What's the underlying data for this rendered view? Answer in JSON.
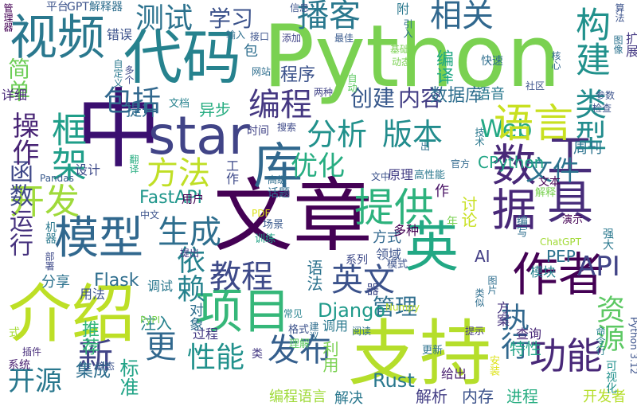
{
  "words": [
    {
      "text": "Python",
      "color": "#7ad151"
    },
    {
      "text": "中",
      "color": "#3b0f70"
    },
    {
      "text": "star",
      "color": "#414487"
    },
    {
      "text": "文章",
      "color": "#440154"
    },
    {
      "text": "介绍",
      "color": "#bddf26"
    },
    {
      "text": "支持",
      "color": "#b5de2b"
    },
    {
      "text": "代码",
      "color": "#26828e"
    },
    {
      "text": "项目",
      "color": "#35b779"
    },
    {
      "text": "作者",
      "color": "#440154"
    },
    {
      "text": "英",
      "color": "#22a884"
    },
    {
      "text": "视频",
      "color": "#2a788e"
    },
    {
      "text": "工具",
      "color": "#472c7a"
    },
    {
      "text": "库",
      "color": "#31688e"
    },
    {
      "text": "数据",
      "color": "#482878"
    },
    {
      "text": "模型",
      "color": "#31688e"
    },
    {
      "text": "框架",
      "color": "#1f9e89"
    },
    {
      "text": "测试",
      "color": "#2c728e"
    },
    {
      "text": "学习",
      "color": "#3b528b"
    },
    {
      "text": "播客",
      "color": "#2a788e"
    },
    {
      "text": "相关",
      "color": "#31688e"
    },
    {
      "text": "构建",
      "color": "#21918c"
    },
    {
      "text": "类型",
      "color": "#228c8d"
    },
    {
      "text": "Web",
      "color": "#22a884"
    },
    {
      "text": "编译",
      "color": "#22a884"
    },
    {
      "text": "语言",
      "color": "#c8e020"
    },
    {
      "text": "分析",
      "color": "#21918c"
    },
    {
      "text": "版本",
      "color": "#228c8d"
    },
    {
      "text": "创建",
      "color": "#38598c"
    },
    {
      "text": "内容",
      "color": "#433e85"
    },
    {
      "text": "编程",
      "color": "#453882"
    },
    {
      "text": "包括",
      "color": "#31688e"
    },
    {
      "text": "简单",
      "color": "#6ece58"
    },
    {
      "text": "开发",
      "color": "#9fda3a"
    },
    {
      "text": "方法",
      "color": "#c0df25"
    },
    {
      "text": "生成",
      "color": "#2e6e8e"
    },
    {
      "text": "优化",
      "color": "#27ad81"
    },
    {
      "text": "提供",
      "color": "#2db27d"
    },
    {
      "text": "文件",
      "color": "#2c738e"
    },
    {
      "text": "CPython",
      "color": "#21a585"
    },
    {
      "text": "运行",
      "color": "#46327e"
    },
    {
      "text": "函数",
      "color": "#3f4889"
    },
    {
      "text": "操作",
      "color": "#482475"
    },
    {
      "text": "教程",
      "color": "#3e4a89"
    },
    {
      "text": "依赖",
      "color": "#26828e"
    },
    {
      "text": "英文",
      "color": "#3b528b"
    },
    {
      "text": "API",
      "color": "#414487"
    },
    {
      "text": "资源",
      "color": "#5cc863"
    },
    {
      "text": "执行",
      "color": "#31688e"
    },
    {
      "text": "功能",
      "color": "#482878"
    },
    {
      "text": "管理",
      "color": "#2e6e8e"
    },
    {
      "text": "Django",
      "color": "#1f9a8a"
    },
    {
      "text": "Flask",
      "color": "#2e6e8e"
    },
    {
      "text": "FastAPI",
      "color": "#1f968b"
    },
    {
      "text": "开源",
      "color": "#2a788e"
    },
    {
      "text": "新",
      "color": "#414487"
    },
    {
      "text": "更",
      "color": "#31688e"
    },
    {
      "text": "发布",
      "color": "#355f8d"
    },
    {
      "text": "性能",
      "color": "#21918c"
    },
    {
      "text": "标准",
      "color": "#20a386"
    },
    {
      "text": "Rust",
      "color": "#2a788e"
    },
    {
      "text": "解析",
      "color": "#433e85"
    },
    {
      "text": "内存",
      "color": "#3b528b"
    },
    {
      "text": "进程",
      "color": "#27ad81"
    },
    {
      "text": "开发者",
      "color": "#b5de2b"
    },
    {
      "text": "编程语言",
      "color": "#9fda3a"
    },
    {
      "text": "解决",
      "color": "#2a788e"
    },
    {
      "text": "推荐",
      "color": "#32b67a"
    },
    {
      "text": "集成",
      "color": "#2e6e8e"
    },
    {
      "text": "注入",
      "color": "#26828e"
    },
    {
      "text": "过程",
      "color": "#443983"
    },
    {
      "text": "系统",
      "color": "#481f70"
    },
    {
      "text": "插件",
      "color": "#472d7b"
    },
    {
      "text": "式",
      "color": "#a5db36"
    },
    {
      "text": "分享",
      "color": "#2c728e"
    },
    {
      "text": "用法",
      "color": "#3b528b"
    },
    {
      "text": "调试",
      "color": "#2a788e"
    },
    {
      "text": "方式",
      "color": "#31688e"
    },
    {
      "text": "多种",
      "color": "#440154"
    },
    {
      "text": "年",
      "color": "#7ad151"
    },
    {
      "text": "PEP",
      "color": "#2c728e"
    },
    {
      "text": "模块",
      "color": "#26828e"
    },
    {
      "text": "AI",
      "color": "#433e85"
    },
    {
      "text": "领域",
      "color": "#3b528b"
    },
    {
      "text": "模式",
      "color": "#3b528b"
    },
    {
      "text": "系列",
      "color": "#3e4a89"
    },
    {
      "text": "语法",
      "color": "#2c728e"
    },
    {
      "text": "特性",
      "color": "#20a386"
    },
    {
      "text": "查询",
      "color": "#482878"
    },
    {
      "text": "方案",
      "color": "#46327e"
    },
    {
      "text": "调用",
      "color": "#2a788e"
    },
    {
      "text": "格式",
      "color": "#3b528b"
    },
    {
      "text": "理解",
      "color": "#5ec962"
    },
    {
      "text": "利用",
      "color": "#7ad151"
    },
    {
      "text": "给出",
      "color": "#481f70"
    },
    {
      "text": "类",
      "color": "#443983"
    },
    {
      "text": "更新",
      "color": "#2c728e"
    },
    {
      "text": "安装",
      "color": "#dde318"
    },
    {
      "text": "可视化",
      "color": "#21918c"
    },
    {
      "text": "Python 3.12",
      "color": "#3b528b"
    },
    {
      "text": "演示",
      "color": "#440154"
    },
    {
      "text": "强大",
      "color": "#2a788e"
    },
    {
      "text": "编写",
      "color": "#2e6e8e"
    },
    {
      "text": "ChatGPT",
      "color": "#a2da37"
    },
    {
      "text": "解释",
      "color": "#7ad151"
    },
    {
      "text": "周刊",
      "color": "#2c738e"
    },
    {
      "text": "文本",
      "color": "#440154"
    },
    {
      "text": "讨论",
      "color": "#c8e020"
    },
    {
      "text": "作",
      "color": "#471063"
    },
    {
      "text": "文中",
      "color": "#3b528b"
    },
    {
      "text": "原理",
      "color": "#433e85"
    },
    {
      "text": "高性能",
      "color": "#2a788e"
    },
    {
      "text": "官方",
      "color": "#31688e"
    },
    {
      "text": "技术",
      "color": "#2a788e"
    },
    {
      "text": "时间",
      "color": "#414487"
    },
    {
      "text": "搜索",
      "color": "#3e4a89"
    },
    {
      "text": "高级",
      "color": "#2e6e8e"
    },
    {
      "text": "话题",
      "color": "#2e6e8e"
    },
    {
      "text": "PDF",
      "color": "#dde318"
    },
    {
      "text": "场景",
      "color": "#38598c"
    },
    {
      "text": "训练",
      "color": "#20a386"
    },
    {
      "text": "用户",
      "color": "#440154"
    },
    {
      "text": "设计",
      "color": "#3e4a89"
    },
    {
      "text": "Pandas",
      "color": "#38598c"
    },
    {
      "text": "机器",
      "color": "#2a788e"
    },
    {
      "text": "部署",
      "color": "#3e4a89"
    },
    {
      "text": "提出",
      "color": "#443983"
    },
    {
      "text": "中文",
      "color": "#3b528b"
    },
    {
      "text": "翻译",
      "color": "#27ad81"
    },
    {
      "text": "文档",
      "color": "#26828e"
    },
    {
      "text": "异步",
      "color": "#27ad81"
    },
    {
      "text": "提升",
      "color": "#2e6e8e"
    },
    {
      "text": "程序",
      "color": "#3b528b"
    },
    {
      "text": "语音",
      "color": "#2a788e"
    },
    {
      "text": "数据库",
      "color": "#2e6e8e"
    },
    {
      "text": "详细",
      "color": "#482878"
    },
    {
      "text": "多个",
      "color": "#3e4a89"
    },
    {
      "text": "自定义",
      "color": "#2a788e"
    },
    {
      "text": "错误",
      "color": "#3b528b"
    },
    {
      "text": "网站",
      "color": "#2e6e8e"
    },
    {
      "text": "两种",
      "color": "#414487"
    },
    {
      "text": "自动",
      "color": "#5ec962"
    },
    {
      "text": "图像",
      "color": "#2c728e"
    },
    {
      "text": "GPT",
      "color": "#3b528b"
    },
    {
      "text": "解释器",
      "color": "#2e6e8e"
    },
    {
      "text": "平台",
      "color": "#3b528b"
    },
    {
      "text": "信息",
      "color": "#3b528b"
    },
    {
      "text": "附",
      "color": "#2a788e"
    },
    {
      "text": "算法",
      "color": "#3b528b"
    },
    {
      "text": "输入",
      "color": "#2e6e8e"
    },
    {
      "text": "接口",
      "color": "#3b528b"
    },
    {
      "text": "添加",
      "color": "#414487"
    },
    {
      "text": "最佳",
      "color": "#38598c"
    },
    {
      "text": "引入",
      "color": "#2e6e8e"
    },
    {
      "text": "扩展",
      "color": "#443983"
    },
    {
      "text": "包",
      "color": "#2e6e8e"
    },
    {
      "text": "管理器",
      "color": "#440154"
    },
    {
      "text": "基础",
      "color": "#7ad151"
    },
    {
      "text": "动态",
      "color": "#7ad151"
    },
    {
      "text": "快速",
      "color": "#2e6e8e"
    },
    {
      "text": "核心",
      "color": "#31688e"
    },
    {
      "text": "社区",
      "color": "#3b528b"
    },
    {
      "text": "参数",
      "color": "#3b528b"
    },
    {
      "text": "检查",
      "color": "#3b528b"
    },
    {
      "text": "对象",
      "color": "#2e6e8e"
    },
    {
      "text": "命令行",
      "color": "#26828e"
    },
    {
      "text": "提示",
      "color": "#443983"
    },
    {
      "text": "阅读",
      "color": "#2e6e8e"
    },
    {
      "text": "建议",
      "color": "#2e6e8e"
    },
    {
      "text": "静态",
      "color": "#3b528b"
    },
    {
      "text": "Numpy",
      "color": "#bddf26"
    },
    {
      "text": "图片",
      "color": "#2e6e8e"
    },
    {
      "text": "类似",
      "color": "#2e6e8e"
    },
    {
      "text": "器",
      "color": "#3e4a89"
    },
    {
      "text": "常见",
      "color": "#26828e"
    },
    {
      "text": "PyPI",
      "color": "#7ad151"
    },
    {
      "text": "出",
      "color": "#2e6e8e"
    },
    {
      "text": "工作",
      "color": "#3e4a89"
    }
  ]
}
